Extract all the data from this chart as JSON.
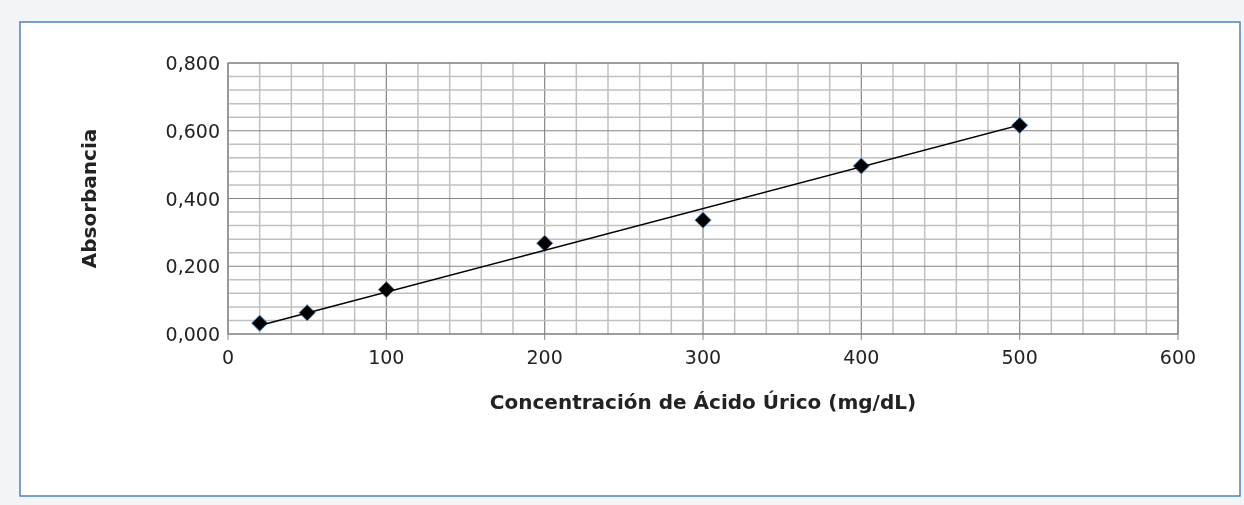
{
  "chart_data": {
    "type": "scatter",
    "xlabel": "Concentración de Ácido Úrico (mg/dL)",
    "ylabel": "Absorbancia",
    "series": [
      {
        "color": "#000000",
        "marker": "diamond",
        "x": [
          20,
          50,
          100,
          200,
          300,
          400,
          500
        ],
        "values": [
          0.032,
          0.063,
          0.131,
          0.268,
          0.336,
          0.496,
          0.616
        ]
      },
      {
        "type": "line",
        "color": "#000000",
        "marker": "none",
        "x": [
          20,
          500
        ],
        "values": [
          0.025,
          0.617
        ]
      }
    ],
    "xlim": [
      0,
      600
    ],
    "xticks": [
      0,
      {
        "value": 20,
        "label": null
      },
      {
        "value": 40,
        "label": null
      },
      {
        "value": 60,
        "label": null
      },
      {
        "value": 80,
        "label": null
      },
      100,
      {
        "value": 120,
        "label": null
      },
      {
        "value": 140,
        "label": null
      },
      {
        "value": 160,
        "label": null
      },
      {
        "value": 180,
        "label": null
      },
      200,
      {
        "value": 220,
        "label": null
      },
      {
        "value": 240,
        "label": null
      },
      {
        "value": 260,
        "label": null
      },
      {
        "value": 280,
        "label": null
      },
      300,
      {
        "value": 320,
        "label": null
      },
      {
        "value": 340,
        "label": null
      },
      {
        "value": 360,
        "label": null
      },
      {
        "value": 380,
        "label": null
      },
      400,
      {
        "value": 420,
        "label": null
      },
      {
        "value": 440,
        "label": null
      },
      {
        "value": 460,
        "label": null
      },
      {
        "value": 480,
        "label": null
      },
      500,
      {
        "value": 520,
        "label": null
      },
      {
        "value": 540,
        "label": null
      },
      {
        "value": 560,
        "label": null
      },
      {
        "value": 580,
        "label": null
      },
      600
    ],
    "ylim": [
      0,
      0.8
    ],
    "yticks": [
      {
        "value": 0,
        "label": "0,000"
      },
      {
        "value": 0.04,
        "label": null
      },
      {
        "value": 0.08,
        "label": null
      },
      {
        "value": 0.12,
        "label": null
      },
      {
        "value": 0.16,
        "label": null
      },
      {
        "value": 0.2,
        "label": "0,200"
      },
      {
        "value": 0.24,
        "label": null
      },
      {
        "value": 0.28,
        "label": null
      },
      {
        "value": 0.32,
        "label": null
      },
      {
        "value": 0.36,
        "label": null
      },
      {
        "value": 0.4,
        "label": "0,400"
      },
      {
        "value": 0.44,
        "label": null
      },
      {
        "value": 0.48,
        "label": null
      },
      {
        "value": 0.52,
        "label": null
      },
      {
        "value": 0.56,
        "label": null
      },
      {
        "value": 0.6,
        "label": "0,600"
      },
      {
        "value": 0.64,
        "label": null
      },
      {
        "value": 0.68,
        "label": null
      },
      {
        "value": 0.72,
        "label": null
      },
      {
        "value": 0.76,
        "label": null
      },
      {
        "value": 0.8,
        "label": "0,800"
      }
    ],
    "grid": true
  }
}
